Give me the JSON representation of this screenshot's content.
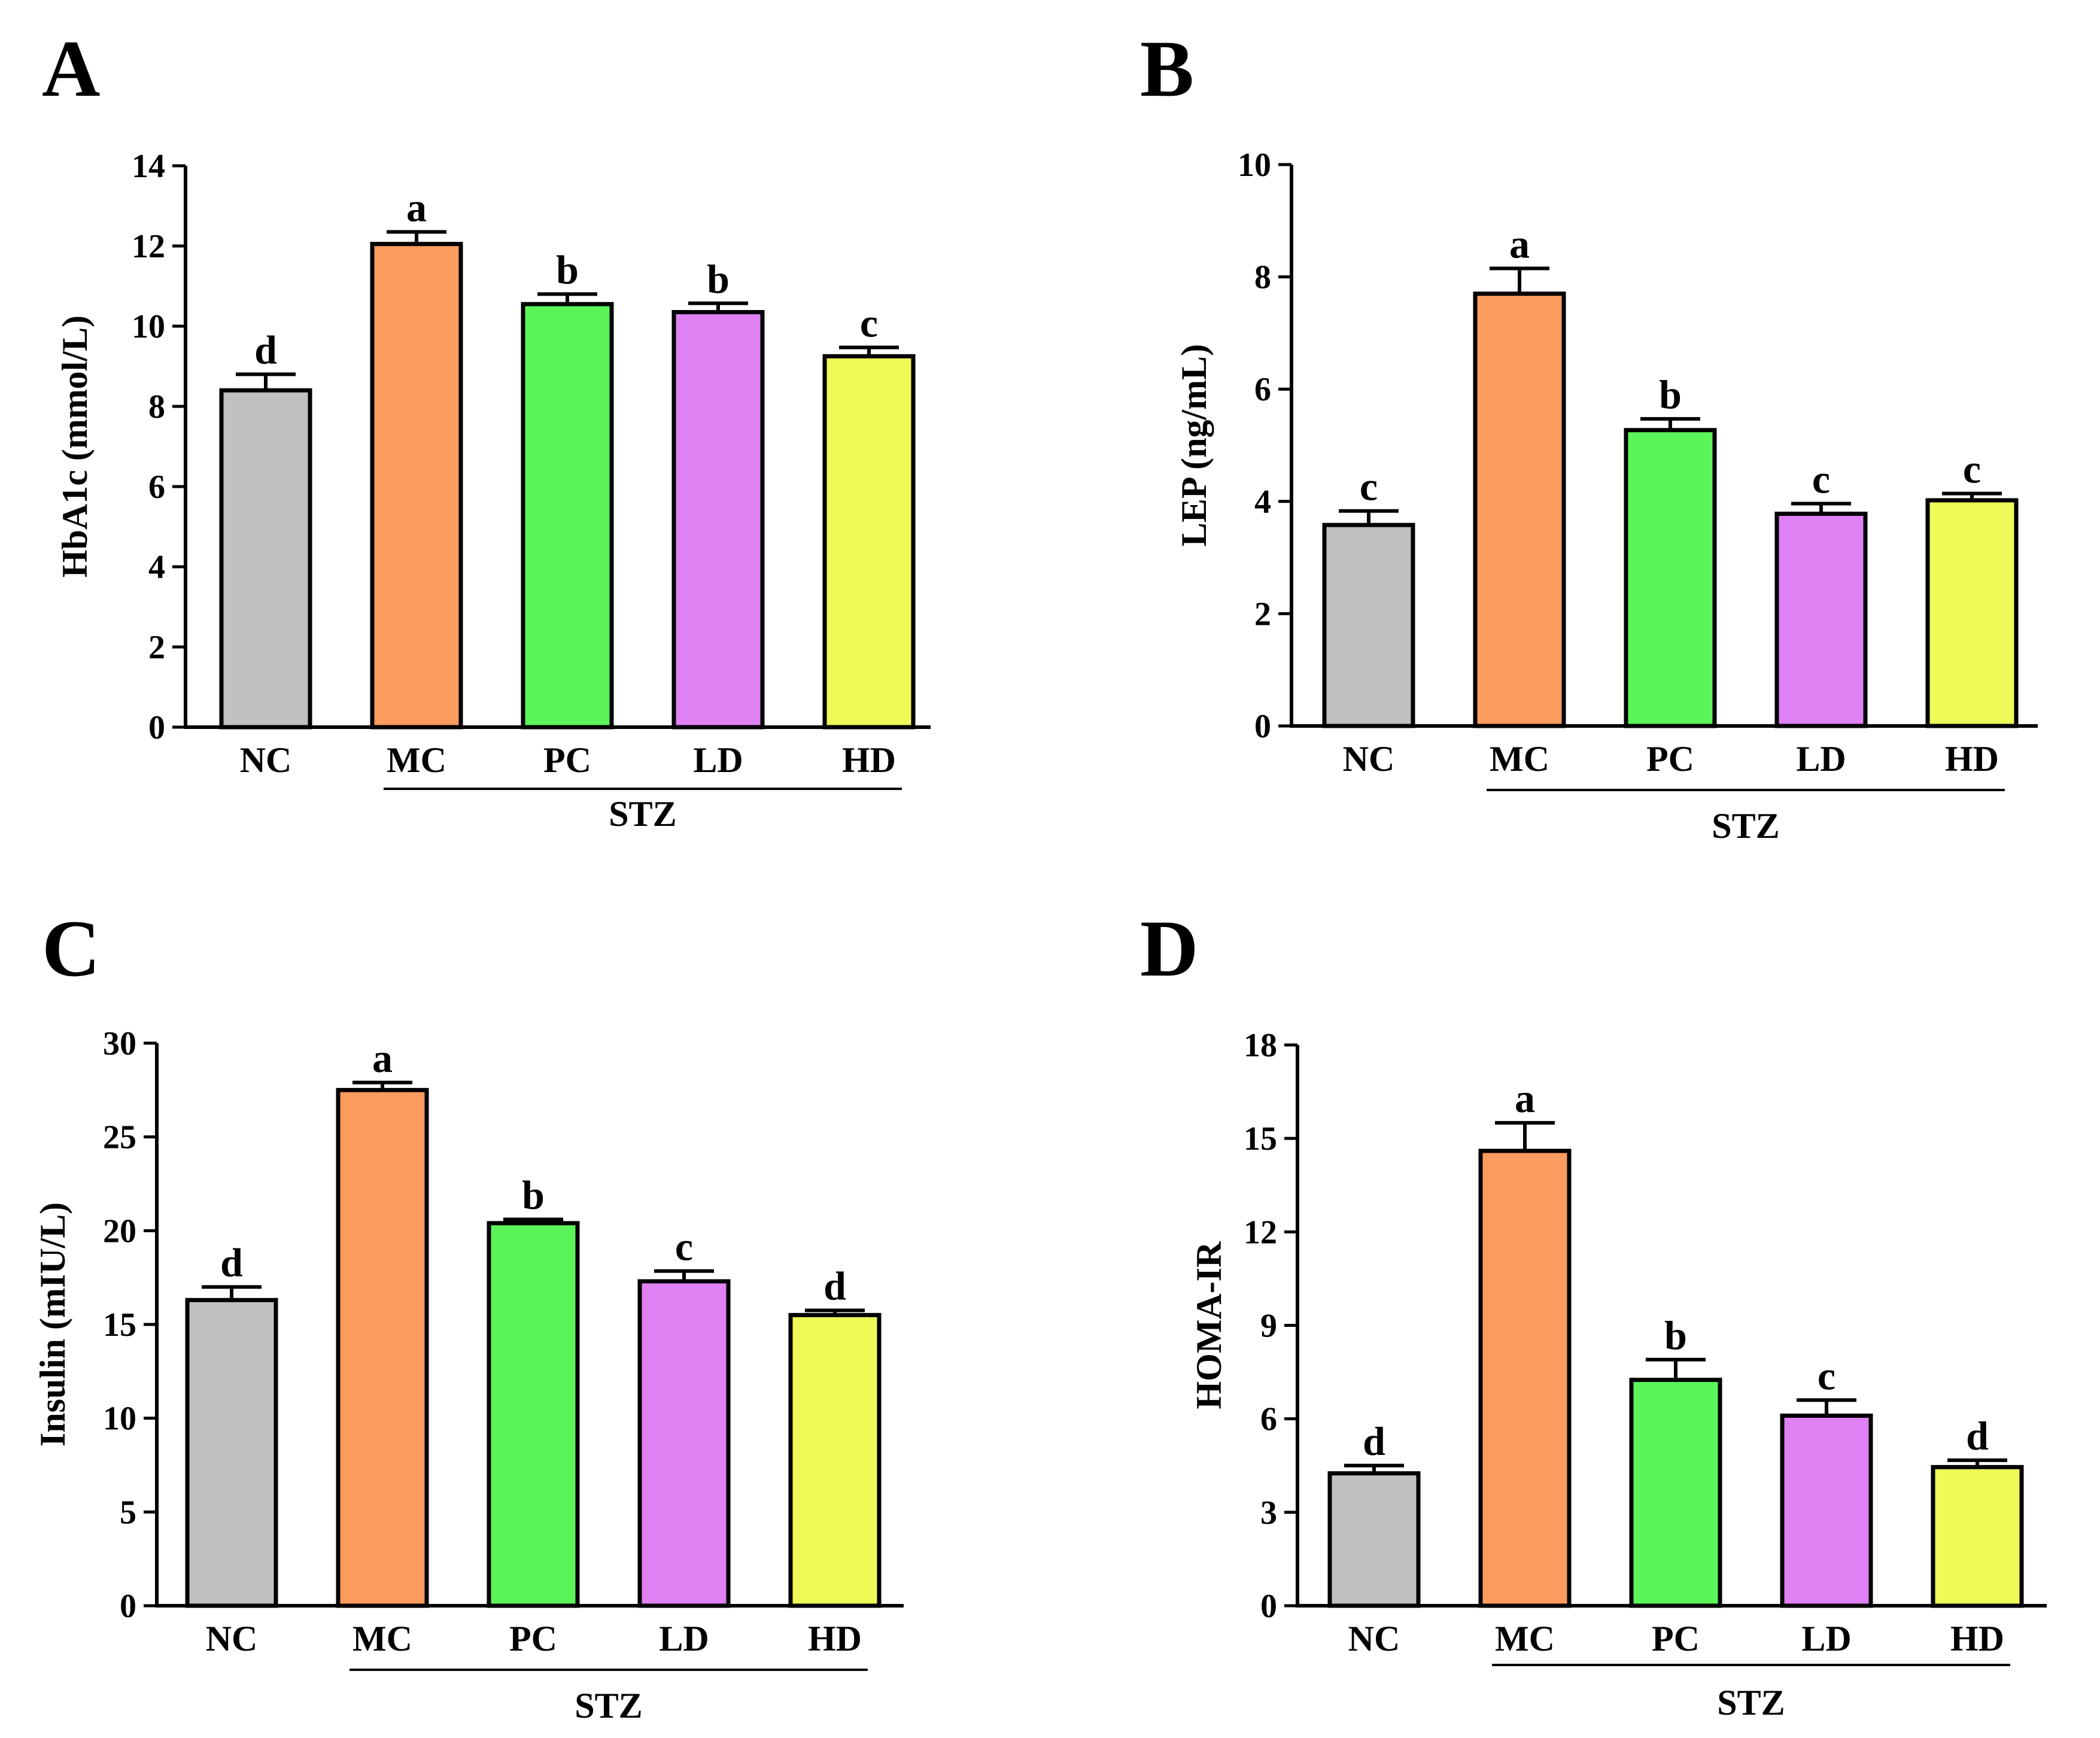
{
  "colors": {
    "NC": "#c0c0c0",
    "MC": "#fb9b5e",
    "PC": "#5bf55a",
    "LD": "#de81f2",
    "HD": "#eefa57"
  },
  "chart_data": [
    {
      "panel": "A",
      "type": "bar",
      "ylabel": "HbA1c (mmol/L)",
      "categories": [
        "NC",
        "MC",
        "PC",
        "LD",
        "HD"
      ],
      "values": [
        8.4,
        12.05,
        10.55,
        10.35,
        9.25
      ],
      "errors": [
        0.4,
        0.3,
        0.25,
        0.22,
        0.22
      ],
      "significance": [
        "d",
        "a",
        "b",
        "b",
        "c"
      ],
      "ylim": [
        0,
        14
      ],
      "yticks": [
        "0",
        "2",
        "4",
        "6",
        "8",
        "10",
        "12",
        "14"
      ],
      "group_label": "STZ"
    },
    {
      "panel": "B",
      "type": "bar",
      "ylabel": "LEP (ng/mL)",
      "categories": [
        "NC",
        "MC",
        "PC",
        "LD",
        "HD"
      ],
      "values": [
        3.58,
        7.7,
        5.27,
        3.78,
        4.02
      ],
      "errors": [
        0.25,
        0.45,
        0.2,
        0.18,
        0.12
      ],
      "significance": [
        "c",
        "a",
        "b",
        "c",
        "c"
      ],
      "ylim": [
        0,
        10
      ],
      "yticks": [
        "0",
        "2",
        "4",
        "6",
        "8",
        "10"
      ],
      "group_label": "STZ"
    },
    {
      "panel": "C",
      "type": "bar",
      "ylabel": "Insulin (mIU/L)",
      "categories": [
        "NC",
        "MC",
        "PC",
        "LD",
        "HD"
      ],
      "values": [
        16.3,
        27.5,
        20.4,
        17.3,
        15.5
      ],
      "errors": [
        0.7,
        0.4,
        0.2,
        0.55,
        0.25
      ],
      "significance": [
        "d",
        "a",
        "b",
        "c",
        "d"
      ],
      "ylim": [
        0,
        30
      ],
      "yticks": [
        "0",
        "5",
        "10",
        "15",
        "20",
        "25",
        "30"
      ],
      "group_label": "STZ"
    },
    {
      "panel": "D",
      "type": "bar",
      "ylabel": "HOMA-IR",
      "categories": [
        "NC",
        "MC",
        "PC",
        "LD",
        "HD"
      ],
      "values": [
        4.25,
        14.6,
        7.25,
        6.1,
        4.45
      ],
      "errors": [
        0.25,
        0.9,
        0.65,
        0.5,
        0.22
      ],
      "significance": [
        "d",
        "a",
        "b",
        "c",
        "d"
      ],
      "ylim": [
        0,
        18
      ],
      "yticks": [
        "0",
        "3",
        "6",
        "9",
        "12",
        "15",
        "18"
      ],
      "group_label": "STZ"
    }
  ]
}
